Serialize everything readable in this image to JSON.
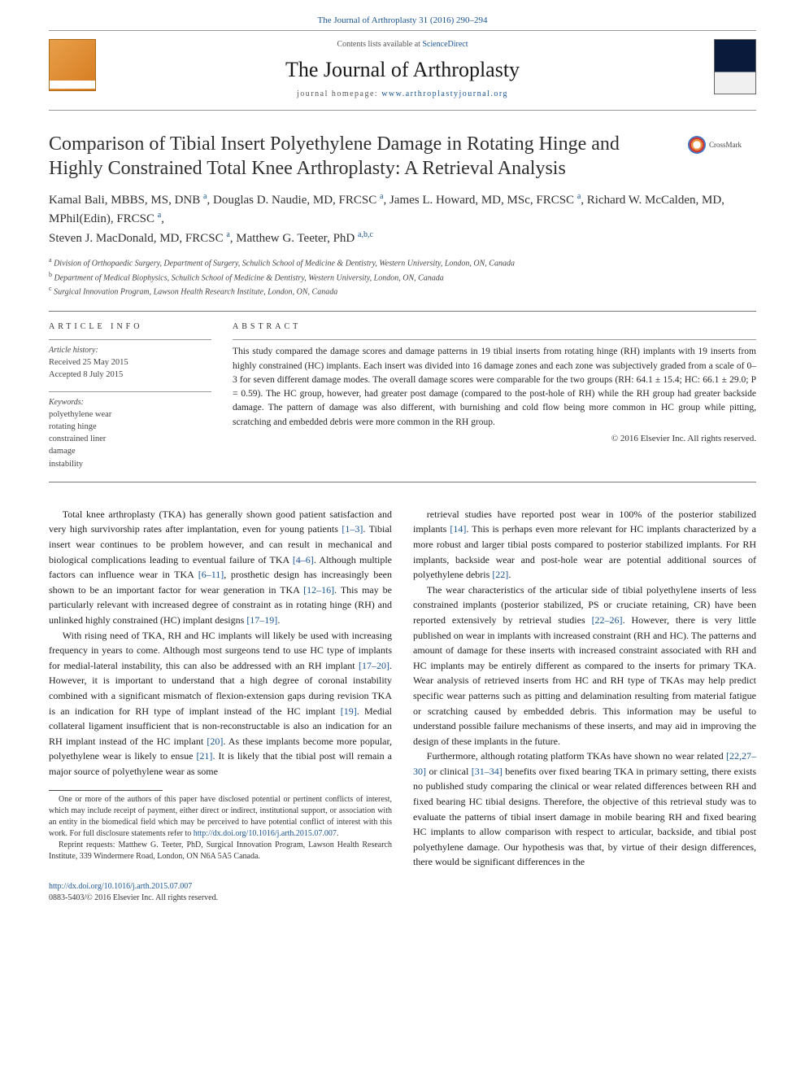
{
  "header": {
    "citation": "The Journal of Arthroplasty 31 (2016) 290–294",
    "contents_prefix": "Contents lists available at ",
    "contents_link": "ScienceDirect",
    "journal_name": "The Journal of Arthroplasty",
    "homepage_prefix": "journal homepage: ",
    "homepage_link": "www.arthroplastyjournal.org"
  },
  "crossmark_label": "CrossMark",
  "title": "Comparison of Tibial Insert Polyethylene Damage in Rotating Hinge and Highly Constrained Total Knee Arthroplasty: A Retrieval Analysis",
  "authors_html": "Kamal Bali, MBBS, MS, DNB <span class='sup'>a</span>, Douglas D. Naudie, MD, FRCSC <span class='sup'>a</span>, James L. Howard, MD, MSc, FRCSC <span class='sup'>a</span>, Richard W. McCalden, MD, MPhil(Edin), FRCSC <span class='sup'>a</span>,<br>Steven J. MacDonald, MD, FRCSC <span class='sup'>a</span>, Matthew G. Teeter, PhD <span class='sup'>a,b,c</span>",
  "affiliations": [
    {
      "sup": "a",
      "text": "Division of Orthopaedic Surgery, Department of Surgery, Schulich School of Medicine & Dentistry, Western University, London, ON, Canada"
    },
    {
      "sup": "b",
      "text": "Department of Medical Biophysics, Schulich School of Medicine & Dentistry, Western University, London, ON, Canada"
    },
    {
      "sup": "c",
      "text": "Surgical Innovation Program, Lawson Health Research Institute, London, ON, Canada"
    }
  ],
  "article_info": {
    "head": "ARTICLE INFO",
    "history_label": "Article history:",
    "received": "Received 25 May 2015",
    "accepted": "Accepted 8 July 2015",
    "keywords_label": "Keywords:",
    "keywords": [
      "polyethylene wear",
      "rotating hinge",
      "constrained liner",
      "damage",
      "instability"
    ]
  },
  "abstract": {
    "head": "ABSTRACT",
    "text": "This study compared the damage scores and damage patterns in 19 tibial inserts from rotating hinge (RH) implants with 19 inserts from highly constrained (HC) implants. Each insert was divided into 16 damage zones and each zone was subjectively graded from a scale of 0–3 for seven different damage modes. The overall damage scores were comparable for the two groups (RH: 64.1 ± 15.4; HC: 66.1 ± 29.0; P = 0.59). The HC group, however, had greater post damage (compared to the post-hole of RH) while the RH group had greater backside damage. The pattern of damage was also different, with burnishing and cold flow being more common in HC group while pitting, scratching and embedded debris were more common in the RH group.",
    "copyright": "© 2016 Elsevier Inc. All rights reserved."
  },
  "body": {
    "p1": "Total knee arthroplasty (TKA) has generally shown good patient satisfaction and very high survivorship rates after implantation, even for young patients [1–3]. Tibial insert wear continues to be problem however, and can result in mechanical and biological complications leading to eventual failure of TKA [4–6]. Although multiple factors can influence wear in TKA [6–11], prosthetic design has increasingly been shown to be an important factor for wear generation in TKA [12–16]. This may be particularly relevant with increased degree of constraint as in rotating hinge (RH) and unlinked highly constrained (HC) implant designs [17–19].",
    "p1_refs": {
      "r1": "[1–3]",
      "r2": "[4–6]",
      "r3": "[6–11]",
      "r4": "[12–16]",
      "r5": "[17–19]"
    },
    "p2": "With rising need of TKA, RH and HC implants will likely be used with increasing frequency in years to come. Although most surgeons tend to use HC type of implants for medial-lateral instability, this can also be addressed with an RH implant [17–20]. However, it is important to understand that a high degree of coronal instability combined with a significant mismatch of flexion-extension gaps during revision TKA is an indication for RH type of implant instead of the HC implant [19]. Medial collateral ligament insufficient that is non-reconstructable is also an indication for an RH implant instead of the HC implant [20]. As these implants become more popular, polyethylene wear is likely to ensue [21]. It is likely that the tibial post will remain a major source of polyethylene wear as some",
    "p2_refs": {
      "r1": "[17–20]",
      "r2": "[19]",
      "r3": "[20]",
      "r4": "[21]"
    },
    "p3": "retrieval studies have reported post wear in 100% of the posterior stabilized implants [14]. This is perhaps even more relevant for HC implants characterized by a more robust and larger tibial posts compared to posterior stabilized implants. For RH implants, backside wear and post-hole wear are potential additional sources of polyethylene debris [22].",
    "p3_refs": {
      "r1": "[14]",
      "r2": "[22]"
    },
    "p4": "The wear characteristics of the articular side of tibial polyethylene inserts of less constrained implants (posterior stabilized, PS or cruciate retaining, CR) have been reported extensively by retrieval studies [22–26]. However, there is very little published on wear in implants with increased constraint (RH and HC). The patterns and amount of damage for these inserts with increased constraint associated with RH and HC implants may be entirely different as compared to the inserts for primary TKA. Wear analysis of retrieved inserts from HC and RH type of TKAs may help predict specific wear patterns such as pitting and delamination resulting from material fatigue or scratching caused by embedded debris. This information may be useful to understand possible failure mechanisms of these inserts, and may aid in improving the design of these implants in the future.",
    "p4_refs": {
      "r1": "[22–26]"
    },
    "p5": "Furthermore, although rotating platform TKAs have shown no wear related [22,27–30] or clinical [31–34] benefits over fixed bearing TKA in primary setting, there exists no published study comparing the clinical or wear related differences between RH and fixed bearing HC tibial designs. Therefore, the objective of this retrieval study was to evaluate the patterns of tibial insert damage in mobile bearing RH and fixed bearing HC implants to allow comparison with respect to articular, backside, and tibial post polyethylene damage. Our hypothesis was that, by virtue of their design differences, there would be significant differences in the",
    "p5_refs": {
      "r1": "[22,27–30]",
      "r2": "[31–34]"
    }
  },
  "footnotes": {
    "conflict": "One or more of the authors of this paper have disclosed potential or pertinent conflicts of interest, which may include receipt of payment, either direct or indirect, institutional support, or association with an entity in the biomedical field which may be perceived to have potential conflict of interest with this work. For full disclosure statements refer to ",
    "conflict_link": "http://dx.doi.org/10.1016/j.arth.2015.07.007",
    "reprint": "Reprint requests: Matthew G. Teeter, PhD, Surgical Innovation Program, Lawson Health Research Institute, 339 Windermere Road, London, ON N6A 5A5 Canada."
  },
  "footer": {
    "doi": "http://dx.doi.org/10.1016/j.arth.2015.07.007",
    "issn_line": "0883-5403/© 2016 Elsevier Inc. All rights reserved."
  },
  "colors": {
    "link": "#1a5490",
    "text": "#1a1a1a",
    "rule": "#777"
  }
}
